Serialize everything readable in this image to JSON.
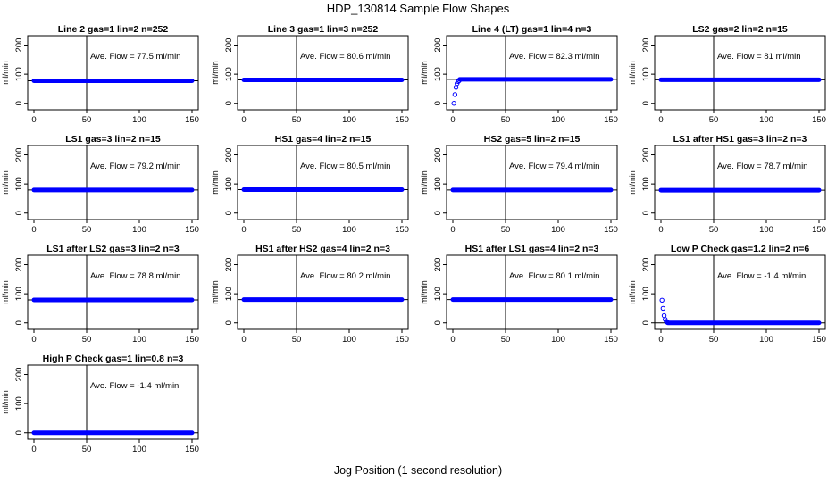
{
  "title": "HDP_130814  Sample Flow Shapes",
  "xlabel": "Jog Position (1 second resolution)",
  "colors": {
    "points": "#0000ff",
    "axes": "#000000",
    "background": "#ffffff"
  },
  "chart_data": [
    {
      "type": "scatter",
      "title": "Line 2 gas=1 lin=2 n=252",
      "ylabel": "ml/min",
      "annotation": "Ave. Flow =  77.5  ml/min",
      "xlim": [
        0,
        150
      ],
      "ylim": [
        -10,
        220
      ],
      "xticks": [
        0,
        50,
        100,
        150
      ],
      "yticks": [
        0,
        100,
        200
      ],
      "hline": 77.5,
      "vline": 50,
      "series": [
        {
          "shape": "flat",
          "x_start": 0,
          "x_end": 150,
          "level": 77.5
        }
      ]
    },
    {
      "type": "scatter",
      "title": "Line 3 gas=1 lin=3 n=252",
      "ylabel": "ml/min",
      "annotation": "Ave. Flow =  80.6  ml/min",
      "xlim": [
        0,
        150
      ],
      "ylim": [
        -10,
        220
      ],
      "xticks": [
        0,
        50,
        100,
        150
      ],
      "yticks": [
        0,
        100,
        200
      ],
      "hline": 80.6,
      "vline": 50,
      "series": [
        {
          "shape": "flat",
          "x_start": 0,
          "x_end": 150,
          "level": 80.6
        }
      ]
    },
    {
      "type": "scatter",
      "title": "Line 4 (LT) gas=1 lin=4 n=3",
      "ylabel": "ml/min",
      "annotation": "Ave. Flow =  82.3  ml/min",
      "xlim": [
        0,
        150
      ],
      "ylim": [
        -10,
        220
      ],
      "xticks": [
        0,
        50,
        100,
        150
      ],
      "yticks": [
        0,
        100,
        200
      ],
      "hline": 82.3,
      "vline": 50,
      "series": [
        {
          "shape": "rise",
          "x_start": 0,
          "x_end": 150,
          "level": 82.3,
          "points": [
            [
              1,
              0
            ],
            [
              2,
              30
            ],
            [
              3,
              55
            ],
            [
              4,
              68
            ],
            [
              5,
              75
            ],
            [
              6,
              78
            ]
          ]
        }
      ]
    },
    {
      "type": "scatter",
      "title": "LS2 gas=2 lin=2 n=15",
      "ylabel": "ml/min",
      "annotation": "Ave. Flow =  81  ml/min",
      "xlim": [
        0,
        150
      ],
      "ylim": [
        -10,
        220
      ],
      "xticks": [
        0,
        50,
        100,
        150
      ],
      "yticks": [
        0,
        100,
        200
      ],
      "hline": 81,
      "vline": 50,
      "series": [
        {
          "shape": "flat",
          "x_start": 0,
          "x_end": 150,
          "level": 81
        }
      ]
    },
    {
      "type": "scatter",
      "title": "LS1 gas=3 lin=2 n=15",
      "ylabel": "ml/min",
      "annotation": "Ave. Flow =  79.2  ml/min",
      "xlim": [
        0,
        150
      ],
      "ylim": [
        -10,
        220
      ],
      "xticks": [
        0,
        50,
        100,
        150
      ],
      "yticks": [
        0,
        100,
        200
      ],
      "hline": 79.2,
      "vline": 50,
      "series": [
        {
          "shape": "flat",
          "x_start": 0,
          "x_end": 150,
          "level": 79.2
        }
      ]
    },
    {
      "type": "scatter",
      "title": "HS1 gas=4 lin=2 n=15",
      "ylabel": "ml/min",
      "annotation": "Ave. Flow =  80.5  ml/min",
      "xlim": [
        0,
        150
      ],
      "ylim": [
        -10,
        220
      ],
      "xticks": [
        0,
        50,
        100,
        150
      ],
      "yticks": [
        0,
        100,
        200
      ],
      "hline": 80.5,
      "vline": 50,
      "series": [
        {
          "shape": "flat",
          "x_start": 0,
          "x_end": 150,
          "level": 80.5
        }
      ]
    },
    {
      "type": "scatter",
      "title": "HS2 gas=5 lin=2 n=15",
      "ylabel": "ml/min",
      "annotation": "Ave. Flow =  79.4  ml/min",
      "xlim": [
        0,
        150
      ],
      "ylim": [
        -10,
        220
      ],
      "xticks": [
        0,
        50,
        100,
        150
      ],
      "yticks": [
        0,
        100,
        200
      ],
      "hline": 79.4,
      "vline": 50,
      "series": [
        {
          "shape": "flat",
          "x_start": 0,
          "x_end": 150,
          "level": 79.4
        }
      ]
    },
    {
      "type": "scatter",
      "title": "LS1 after HS1 gas=3 lin=2 n=3",
      "ylabel": "ml/min",
      "annotation": "Ave. Flow =  78.7  ml/min",
      "xlim": [
        0,
        150
      ],
      "ylim": [
        -10,
        220
      ],
      "xticks": [
        0,
        50,
        100,
        150
      ],
      "yticks": [
        0,
        100,
        200
      ],
      "hline": 78.7,
      "vline": 50,
      "series": [
        {
          "shape": "flat",
          "x_start": 0,
          "x_end": 150,
          "level": 78.7
        }
      ]
    },
    {
      "type": "scatter",
      "title": "LS1 after LS2 gas=3 lin=2 n=3",
      "ylabel": "ml/min",
      "annotation": "Ave. Flow =  78.8  ml/min",
      "xlim": [
        0,
        150
      ],
      "ylim": [
        -10,
        220
      ],
      "xticks": [
        0,
        50,
        100,
        150
      ],
      "yticks": [
        0,
        100,
        200
      ],
      "hline": 78.8,
      "vline": 50,
      "series": [
        {
          "shape": "flat",
          "x_start": 0,
          "x_end": 150,
          "level": 78.8
        }
      ]
    },
    {
      "type": "scatter",
      "title": "HS1 after HS2 gas=4 lin=2 n=3",
      "ylabel": "ml/min",
      "annotation": "Ave. Flow =  80.2  ml/min",
      "xlim": [
        0,
        150
      ],
      "ylim": [
        -10,
        220
      ],
      "xticks": [
        0,
        50,
        100,
        150
      ],
      "yticks": [
        0,
        100,
        200
      ],
      "hline": 80.2,
      "vline": 50,
      "series": [
        {
          "shape": "flat",
          "x_start": 0,
          "x_end": 150,
          "level": 80.2
        }
      ]
    },
    {
      "type": "scatter",
      "title": "HS1 after LS1 gas=4 lin=2 n=3",
      "ylabel": "ml/min",
      "annotation": "Ave. Flow =  80.1  ml/min",
      "xlim": [
        0,
        150
      ],
      "ylim": [
        -10,
        220
      ],
      "xticks": [
        0,
        50,
        100,
        150
      ],
      "yticks": [
        0,
        100,
        200
      ],
      "hline": 80.1,
      "vline": 50,
      "series": [
        {
          "shape": "flat",
          "x_start": 0,
          "x_end": 150,
          "level": 80.1
        }
      ]
    },
    {
      "type": "scatter",
      "title": "Low P Check gas=1.2 lin=2 n=6",
      "ylabel": "ml/min",
      "annotation": "Ave. Flow =  -1.4  ml/min",
      "xlim": [
        0,
        150
      ],
      "ylim": [
        -10,
        220
      ],
      "xticks": [
        0,
        50,
        100,
        150
      ],
      "yticks": [
        0,
        100,
        200
      ],
      "hline": 0,
      "vline": 50,
      "series": [
        {
          "shape": "decay",
          "x_start": 0,
          "x_end": 150,
          "level": 0,
          "points": [
            [
              1,
              78
            ],
            [
              2,
              50
            ],
            [
              3,
              25
            ],
            [
              4,
              12
            ],
            [
              5,
              5
            ],
            [
              6,
              2
            ]
          ]
        }
      ]
    },
    {
      "type": "scatter",
      "title": "High P Check gas=1 lin=0.8 n=3",
      "ylabel": "ml/min",
      "annotation": "Ave. Flow =  -1.4  ml/min",
      "xlim": [
        0,
        150
      ],
      "ylim": [
        -10,
        220
      ],
      "xticks": [
        0,
        50,
        100,
        150
      ],
      "yticks": [
        0,
        100,
        200
      ],
      "hline": 0,
      "vline": 50,
      "series": [
        {
          "shape": "flat",
          "x_start": 0,
          "x_end": 150,
          "level": 0
        }
      ]
    }
  ]
}
